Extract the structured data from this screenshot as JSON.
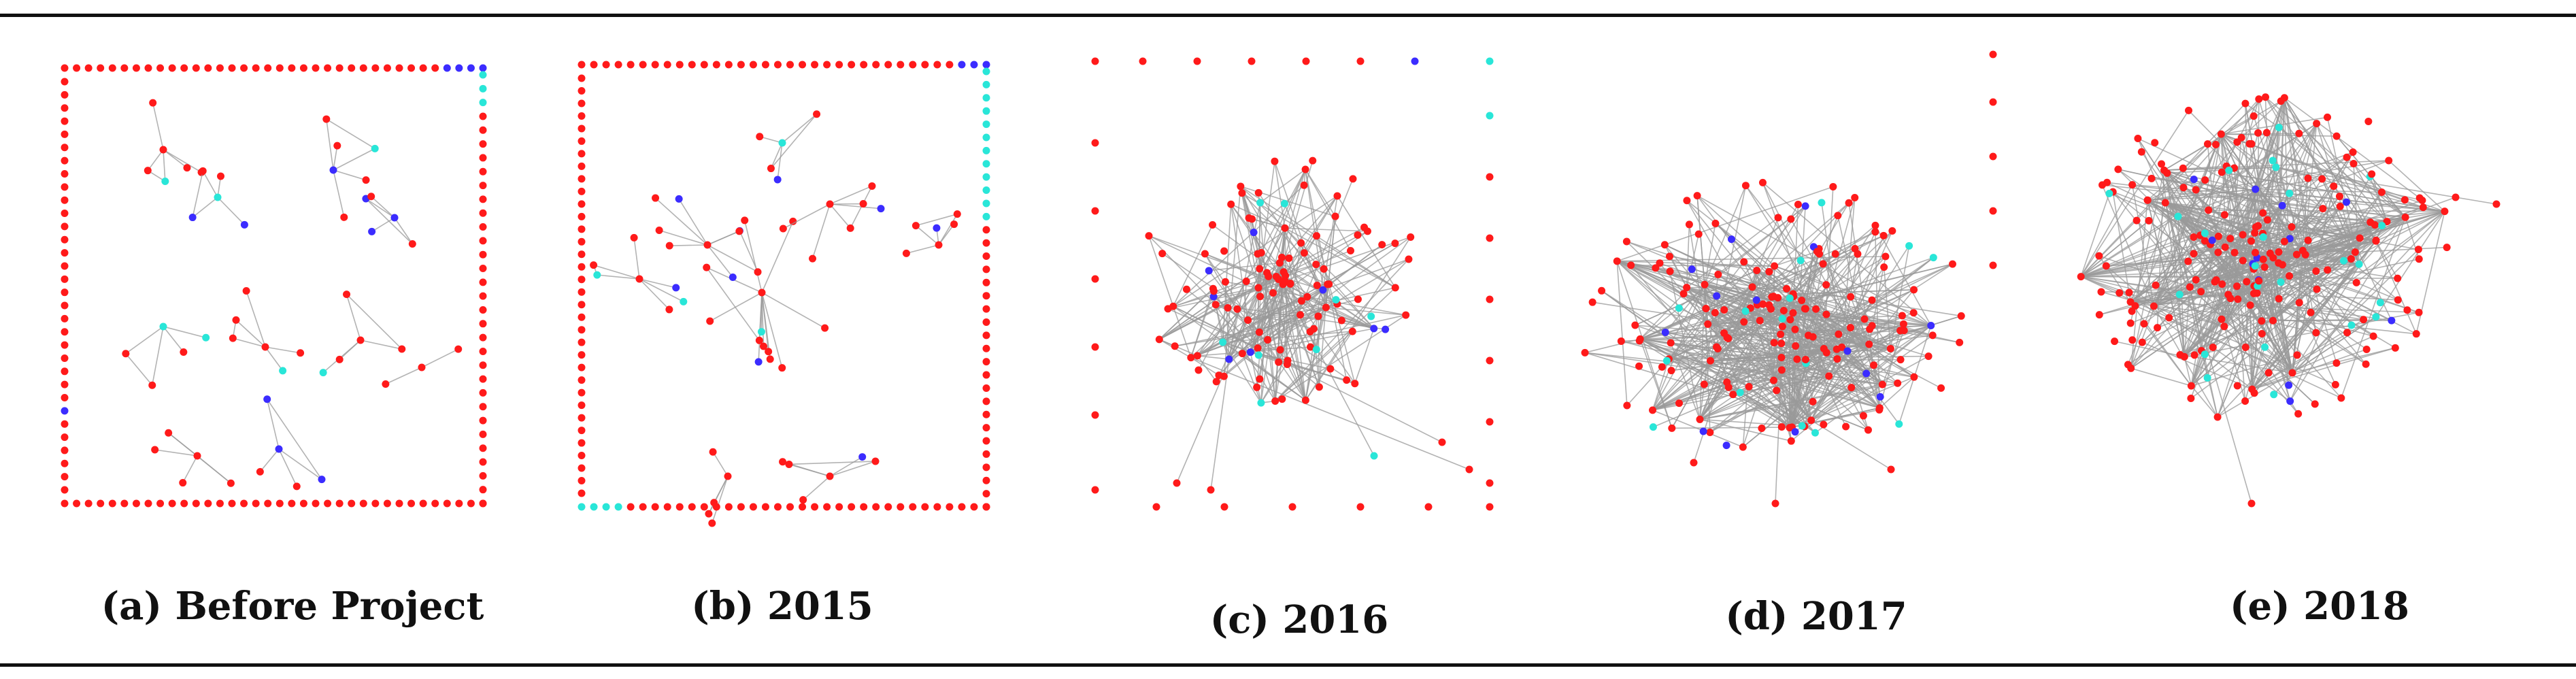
{
  "figure": {
    "colors": {
      "red_node": "#ff1a1a",
      "blue_node": "#3b2cff",
      "cyan_node": "#29e6d8",
      "edge": "#9a9a9a"
    },
    "panels": [
      {
        "id": "a",
        "caption": "(a) Before Project"
      },
      {
        "id": "b",
        "caption": "(b) 2015"
      },
      {
        "id": "c",
        "caption": "(c) 2016"
      },
      {
        "id": "d",
        "caption": "(d) 2017"
      },
      {
        "id": "e",
        "caption": "(e) 2018"
      }
    ]
  }
}
